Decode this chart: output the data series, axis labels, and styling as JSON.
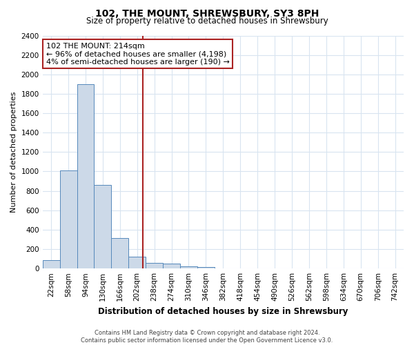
{
  "title": "102, THE MOUNT, SHREWSBURY, SY3 8PH",
  "subtitle": "Size of property relative to detached houses in Shrewsbury",
  "xlabel": "Distribution of detached houses by size in Shrewsbury",
  "ylabel": "Number of detached properties",
  "footer_line1": "Contains HM Land Registry data © Crown copyright and database right 2024.",
  "footer_line2": "Contains public sector information licensed under the Open Government Licence v3.0.",
  "bin_labels": [
    "22sqm",
    "58sqm",
    "94sqm",
    "130sqm",
    "166sqm",
    "202sqm",
    "238sqm",
    "274sqm",
    "310sqm",
    "346sqm",
    "382sqm",
    "418sqm",
    "454sqm",
    "490sqm",
    "526sqm",
    "562sqm",
    "598sqm",
    "634sqm",
    "670sqm",
    "706sqm",
    "742sqm"
  ],
  "bar_values": [
    90,
    1010,
    1900,
    860,
    315,
    120,
    55,
    48,
    20,
    18,
    0,
    0,
    0,
    0,
    0,
    0,
    0,
    0,
    0,
    0,
    0
  ],
  "bar_color": "#ccd9e8",
  "bar_edge_color": "#5588bb",
  "ylim": [
    0,
    2400
  ],
  "yticks": [
    0,
    200,
    400,
    600,
    800,
    1000,
    1200,
    1400,
    1600,
    1800,
    2000,
    2200,
    2400
  ],
  "property_size": 214,
  "property_label": "102 THE MOUNT: 214sqm",
  "vline_color": "#aa2222",
  "annotation_line1": "102 THE MOUNT: 214sqm",
  "annotation_line2": "← 96% of detached houses are smaller (4,198)",
  "annotation_line3": "4% of semi-detached houses are larger (190) →",
  "annotation_box_color": "#ffffff",
  "annotation_box_edge": "#aa2222",
  "background_color": "#ffffff",
  "grid_color": "#d8e4f0",
  "fig_width": 6.0,
  "fig_height": 5.0,
  "title_fontsize": 10,
  "subtitle_fontsize": 8.5,
  "xlabel_fontsize": 8.5,
  "ylabel_fontsize": 8,
  "tick_fontsize": 7.5,
  "footer_fontsize": 6.0,
  "annotation_fontsize": 8.0
}
